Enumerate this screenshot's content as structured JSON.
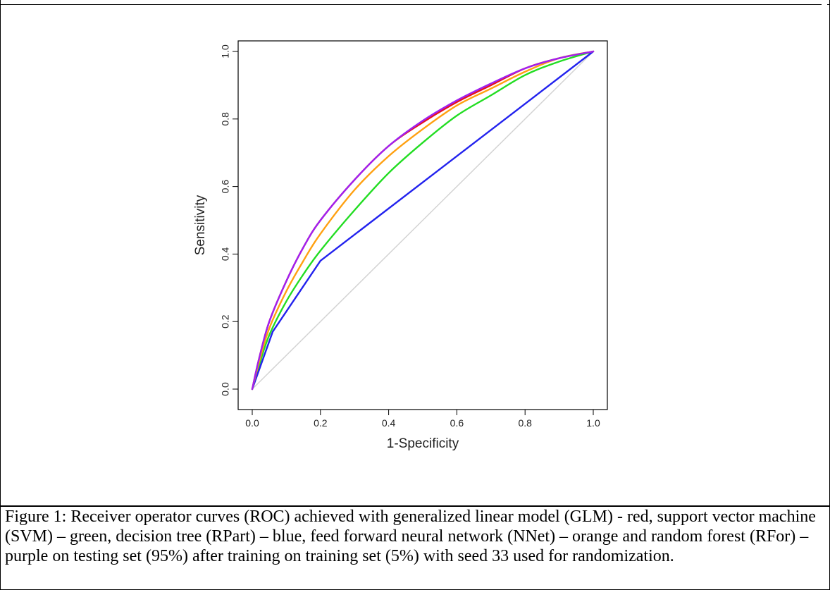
{
  "chart_data": {
    "type": "line",
    "xlabel": "1-Specificity",
    "ylabel": "Sensitivity",
    "xlim": [
      0,
      1
    ],
    "ylim": [
      0,
      1
    ],
    "x_ticks": [
      "0.0",
      "0.2",
      "0.4",
      "0.6",
      "0.8",
      "1.0"
    ],
    "y_ticks": [
      "0.0",
      "0.2",
      "0.4",
      "0.6",
      "0.8",
      "1.0"
    ],
    "grid": false,
    "legend": "none",
    "reference_line": {
      "x": [
        0,
        1
      ],
      "y": [
        0,
        1
      ],
      "color": "#d3d3d3"
    },
    "series": [
      {
        "color": "#e8101a",
        "x": [
          0,
          0.02,
          0.05,
          0.1,
          0.15,
          0.2,
          0.3,
          0.4,
          0.5,
          0.6,
          0.7,
          0.8,
          0.9,
          1.0
        ],
        "y": [
          0,
          0.09,
          0.2,
          0.32,
          0.42,
          0.5,
          0.62,
          0.72,
          0.79,
          0.85,
          0.9,
          0.95,
          0.98,
          1.0
        ]
      },
      {
        "color": "#22dd22",
        "x": [
          0,
          0.02,
          0.05,
          0.1,
          0.15,
          0.2,
          0.3,
          0.4,
          0.5,
          0.6,
          0.7,
          0.8,
          0.9,
          1.0
        ],
        "y": [
          0,
          0.07,
          0.16,
          0.26,
          0.34,
          0.41,
          0.53,
          0.64,
          0.73,
          0.81,
          0.87,
          0.93,
          0.97,
          1.0
        ]
      },
      {
        "color": "#2222ee",
        "x": [
          0,
          0.06,
          0.2,
          1.0
        ],
        "y": [
          0,
          0.17,
          0.38,
          1.0
        ]
      },
      {
        "color": "#ffa010",
        "x": [
          0,
          0.02,
          0.05,
          0.1,
          0.15,
          0.2,
          0.3,
          0.4,
          0.5,
          0.6,
          0.7,
          0.8,
          0.9,
          1.0
        ],
        "y": [
          0,
          0.08,
          0.18,
          0.29,
          0.38,
          0.46,
          0.59,
          0.69,
          0.77,
          0.84,
          0.89,
          0.94,
          0.98,
          1.0
        ]
      },
      {
        "color": "#a020f0",
        "x": [
          0,
          0.02,
          0.05,
          0.1,
          0.15,
          0.2,
          0.3,
          0.4,
          0.5,
          0.6,
          0.7,
          0.8,
          0.9,
          1.0
        ],
        "y": [
          0,
          0.09,
          0.2,
          0.32,
          0.42,
          0.5,
          0.62,
          0.72,
          0.795,
          0.855,
          0.905,
          0.95,
          0.98,
          1.0
        ]
      }
    ]
  },
  "caption": "Figure 1: Receiver operator curves (ROC) achieved with generalized linear model (GLM) - red, support vector machine (SVM) – green, decision tree (RPart) – blue, feed forward neural network (NNet) – orange and random forest (RFor) – purple on testing set (95%) after training on training set (5%) with seed 33 used for randomization."
}
